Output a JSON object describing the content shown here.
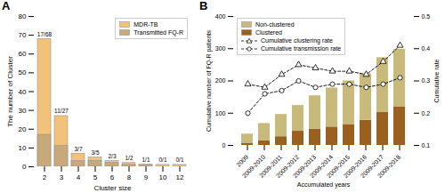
{
  "chart_data": [
    {
      "type": "bar",
      "title": "A",
      "categories": [
        "2",
        "3",
        "4",
        "5",
        "6",
        "8",
        "9",
        "10",
        "12"
      ],
      "series": [
        {
          "name": "MDR-TB",
          "color": "#f2c27a",
          "values": [
            68,
            27,
            7,
            5,
            3,
            2,
            1,
            1,
            1
          ]
        },
        {
          "name": "Transmitted FQ-R",
          "color": "#c8a97a",
          "values": [
            17,
            11,
            3,
            3,
            2,
            1,
            1,
            0,
            0
          ]
        }
      ],
      "stacked": false,
      "annotations": [
        {
          "x": "2",
          "y": 68,
          "text": "17/68"
        },
        {
          "x": "3",
          "y": 27,
          "text": "11/27"
        },
        {
          "x": "4",
          "y": 7,
          "text": "3/7"
        },
        {
          "x": "5",
          "y": 5,
          "text": "3/5"
        },
        {
          "x": "6",
          "y": 3,
          "text": "2/3"
        },
        {
          "x": "8",
          "y": 2,
          "text": "1/2"
        },
        {
          "x": "9",
          "y": 1,
          "text": "1/1"
        },
        {
          "x": "10",
          "y": 1,
          "text": "0/1"
        },
        {
          "x": "12",
          "y": 1,
          "text": "0/1"
        }
      ],
      "xlabel": "Cluster size",
      "ylabel": "The number of Cluster",
      "ylim": [
        0,
        80
      ],
      "yticks": [
        0,
        10,
        20,
        30,
        40,
        50,
        60,
        70,
        80
      ],
      "legend": "upper right",
      "grid": false
    },
    {
      "type": "bar",
      "title": "B",
      "categories": [
        "2009",
        "2009-2010",
        "2009-2011",
        "2009-2012",
        "2009-2013",
        "2009-2014",
        "2009-2015",
        "2009-2016",
        "2009-2017",
        "2009-2018"
      ],
      "series": [
        {
          "name": "Non-clustered",
          "color": "#c8ba7a",
          "values": [
            28,
            54,
            69,
            80,
            104,
            121,
            135,
            144,
            170,
            178
          ]
        },
        {
          "name": "Clustered",
          "color": "#9b6020",
          "values": [
            7,
            14,
            27,
            44,
            50,
            57,
            65,
            78,
            102,
            120
          ]
        },
        {
          "name": "Cumulative clustering rate",
          "type": "line",
          "axis": "y2",
          "color": "black",
          "marker": "triangle",
          "line_style": "dashed",
          "values": [
            0.29,
            0.28,
            0.32,
            0.35,
            0.34,
            0.33,
            0.33,
            0.32,
            0.36,
            0.41
          ]
        },
        {
          "name": "Cumulative transmission rate",
          "type": "line",
          "axis": "y2",
          "color": "black",
          "marker": "circle",
          "line_style": "dashed",
          "values": [
            0.2,
            0.26,
            0.27,
            0.3,
            0.28,
            0.29,
            0.29,
            0.28,
            0.29,
            0.31
          ]
        }
      ],
      "stacked": true,
      "xlabel": "Accumulated years",
      "ylabel": "Cumulative number of FQ-R patients",
      "y2label": "Cumulative rate",
      "ylim": [
        0,
        400
      ],
      "yticks": [
        0,
        100,
        200,
        300,
        400
      ],
      "y2lim": [
        0.1,
        0.5
      ],
      "y2ticks": [
        0.1,
        0.2,
        0.3,
        0.4,
        0.5
      ],
      "legend": "upper left",
      "grid": false
    }
  ]
}
